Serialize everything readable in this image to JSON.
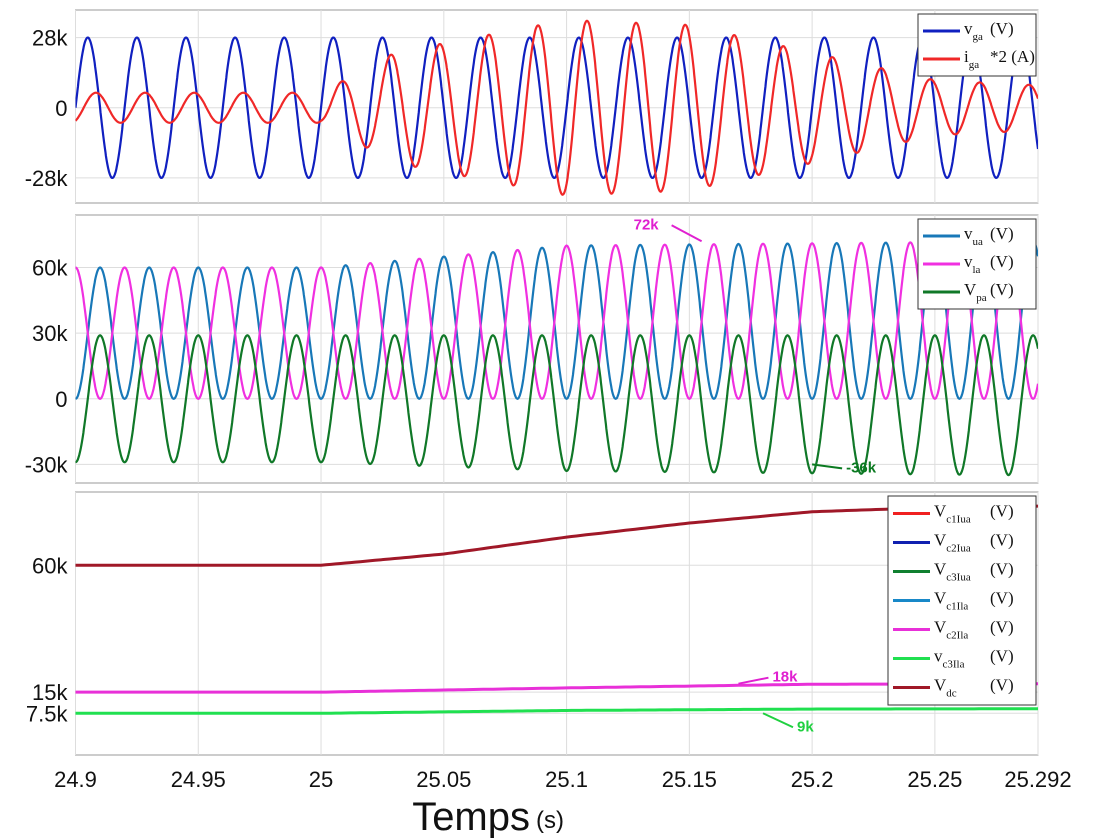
{
  "chart_data": [
    {
      "type": "line",
      "xlim": [
        24.9,
        25.292
      ],
      "ylim": [
        -38000,
        39000
      ],
      "grid": true,
      "legend": "top-right",
      "yticks": [
        {
          "v": 28000,
          "label": "28k"
        },
        {
          "v": 0,
          "label": "0"
        },
        {
          "v": -28000,
          "label": "-28k"
        }
      ],
      "frequency_hz": 50,
      "series": [
        {
          "name": "v",
          "sub": "ga",
          "unit": "(V)",
          "color": "#1020c0",
          "phase_deg": 0,
          "envelope": [
            [
              24.9,
              28000,
              0
            ],
            [
              25.292,
              28000,
              0
            ]
          ]
        },
        {
          "name": "i",
          "sub": "ga",
          "unit": "*2 (A)",
          "color": "#f02828",
          "phase_deg": -60,
          "envelope": [
            [
              24.9,
              6000,
              0
            ],
            [
              25.0,
              6000,
              0
            ],
            [
              25.03,
              22000,
              0
            ],
            [
              25.1,
              35000,
              0
            ],
            [
              25.15,
              33000,
              0
            ],
            [
              25.2,
              22000,
              0
            ],
            [
              25.25,
              11000,
              0
            ],
            [
              25.292,
              9000,
              0
            ]
          ]
        }
      ]
    },
    {
      "type": "line",
      "xlim": [
        24.9,
        25.292
      ],
      "ylim": [
        -38500,
        84000
      ],
      "grid": true,
      "legend": "top-right",
      "yticks": [
        {
          "v": 60000,
          "label": "60k"
        },
        {
          "v": 30000,
          "label": "30k"
        },
        {
          "v": 0,
          "label": "0"
        },
        {
          "v": -30000,
          "label": "-30k"
        }
      ],
      "frequency_hz": 50,
      "annotations": [
        {
          "text": "72k",
          "x": 25.155,
          "y": 72000,
          "color": "#e020d0"
        },
        {
          "text": "-36k",
          "x": 25.2,
          "y": -30000,
          "color": "#0a7a20"
        }
      ],
      "series": [
        {
          "name": "v",
          "sub": "ua",
          "unit": "(V)",
          "color": "#1878b8",
          "phase_deg": -90,
          "envelope": [
            [
              24.9,
              30000,
              30000
            ],
            [
              25.0,
              30000,
              30000
            ],
            [
              25.1,
              35000,
              35000
            ],
            [
              25.292,
              36000,
              36000
            ]
          ]
        },
        {
          "name": "v",
          "sub": "la",
          "unit": "(V)",
          "color": "#f030e0",
          "phase_deg": 90,
          "envelope": [
            [
              24.9,
              30000,
              30000
            ],
            [
              25.0,
              30000,
              30000
            ],
            [
              25.1,
              35000,
              35000
            ],
            [
              25.292,
              36000,
              36000
            ]
          ]
        },
        {
          "name": "V",
          "sub": "pa",
          "unit": "(V)",
          "color": "#107828",
          "phase_deg": -90,
          "envelope": [
            [
              24.9,
              29000,
              0
            ],
            [
              25.0,
              29000,
              0
            ],
            [
              25.1,
              31000,
              -2000
            ],
            [
              25.292,
              32000,
              -3000
            ]
          ]
        }
      ]
    },
    {
      "type": "line",
      "xlim": [
        24.9,
        25.292
      ],
      "ylim": [
        -7300,
        86000
      ],
      "grid": true,
      "legend": "top-right",
      "yticks": [
        {
          "v": 60000,
          "label": "60k"
        },
        {
          "v": 15000,
          "label": "15k"
        },
        {
          "v": 7500,
          "label": "7.5k"
        }
      ],
      "xticks": [
        24.9,
        24.95,
        25,
        25.05,
        25.1,
        25.15,
        25.2,
        25.25,
        25.292
      ],
      "xlabel": "Temps",
      "xunit": "(s)",
      "annotations": [
        {
          "text": "18k",
          "x": 25.17,
          "y": 18000,
          "color": "#e020d0"
        },
        {
          "text": "9k",
          "x": 25.18,
          "y": 7500,
          "color": "#20d040"
        }
      ],
      "series": [
        {
          "name": "V",
          "sub": "c1Iua",
          "unit": "(V)",
          "color": "#f02020",
          "points": []
        },
        {
          "name": "V",
          "sub": "c2Iua",
          "unit": "(V)",
          "color": "#1020b0",
          "points": []
        },
        {
          "name": "V",
          "sub": "c3Iua",
          "unit": "(V)",
          "color": "#108030",
          "points": []
        },
        {
          "name": "V",
          "sub": "c1Ila",
          "unit": "(V)",
          "color": "#1888c8",
          "points": []
        },
        {
          "name": "V",
          "sub": "c2Ila",
          "unit": "(V)",
          "color": "#e830d8",
          "points": [
            [
              24.9,
              15000
            ],
            [
              25.0,
              15000
            ],
            [
              25.1,
              16500
            ],
            [
              25.2,
              17800
            ],
            [
              25.292,
              18000
            ]
          ]
        },
        {
          "name": "v",
          "sub": "c3Ila",
          "unit": "(V)",
          "color": "#20e050",
          "points": [
            [
              24.9,
              7500
            ],
            [
              25.0,
              7500
            ],
            [
              25.1,
              8500
            ],
            [
              25.2,
              9000
            ],
            [
              25.292,
              9100
            ]
          ]
        },
        {
          "name": "V",
          "sub": "dc",
          "unit": "(V)",
          "color": "#a01828",
          "points": [
            [
              24.9,
              60000
            ],
            [
              25.0,
              60000
            ],
            [
              25.05,
              64000
            ],
            [
              25.1,
              70000
            ],
            [
              25.15,
              75000
            ],
            [
              25.2,
              79000
            ],
            [
              25.25,
              80500
            ],
            [
              25.292,
              81000
            ]
          ]
        }
      ]
    }
  ]
}
